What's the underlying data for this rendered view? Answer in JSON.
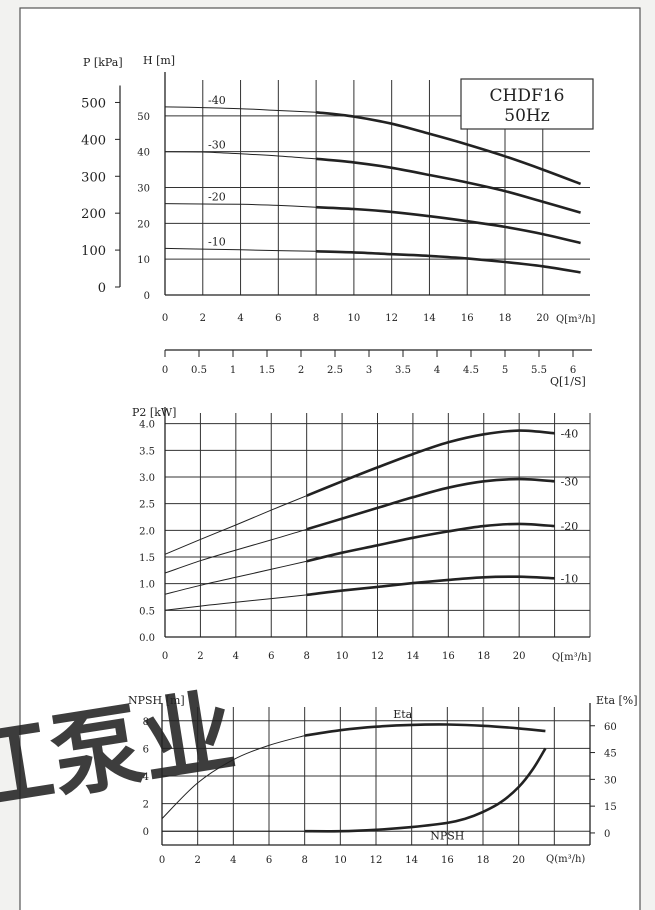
{
  "page": {
    "model": "CHDF16",
    "frequency": "50Hz",
    "watermark": "江泵业",
    "colors": {
      "background": "#f2f2f0",
      "paper": "#ffffff",
      "ink": "#222222",
      "grid": "#333333",
      "watermark": "#4aa0dc"
    }
  },
  "chart_data": [
    {
      "type": "line",
      "x_label": "Q[m³/h]",
      "y_label_left": "H [m]",
      "y_label_pressure": "P [kPa]",
      "x_ticks": [
        0,
        2,
        4,
        6,
        8,
        10,
        12,
        14,
        16,
        18,
        20
      ],
      "x_range": [
        0,
        22.5
      ],
      "y_ticks": [
        0,
        10,
        20,
        30,
        40,
        50
      ],
      "y_range": [
        0,
        60
      ],
      "pressure_ticks": [
        0,
        100,
        200,
        300,
        400,
        500
      ],
      "grid": true,
      "secondary_axis": {
        "x_label": "Q[1/S]",
        "ticks": [
          "0",
          "0.5",
          "1",
          "1.5",
          "2",
          "2.5",
          "3",
          "3.5",
          "4",
          "4.5",
          "5",
          "5.5",
          "6"
        ],
        "tick_values": [
          0,
          0.5,
          1,
          1.5,
          2,
          2.5,
          3,
          3.5,
          4,
          4.5,
          5,
          5.5,
          6
        ]
      },
      "series": [
        {
          "name": "-40",
          "x": [
            0,
            2,
            4,
            6,
            8,
            10,
            12,
            14,
            16,
            18,
            20,
            22
          ],
          "y": [
            52.5,
            52.3,
            52,
            51.5,
            51,
            49.8,
            47.8,
            45,
            42,
            38.7,
            35,
            31
          ]
        },
        {
          "name": "-30",
          "x": [
            0,
            2,
            4,
            6,
            8,
            10,
            12,
            14,
            16,
            18,
            20,
            22
          ],
          "y": [
            40,
            39.9,
            39.4,
            38.8,
            38,
            37,
            35.5,
            33.5,
            31.4,
            29,
            26,
            23
          ]
        },
        {
          "name": "-20",
          "x": [
            0,
            2,
            4,
            6,
            8,
            10,
            12,
            14,
            16,
            18,
            20,
            22
          ],
          "y": [
            25.5,
            25.4,
            25.3,
            25,
            24.5,
            24,
            23.2,
            22,
            20.6,
            19,
            17,
            14.5
          ]
        },
        {
          "name": "-10",
          "x": [
            0,
            2,
            4,
            6,
            8,
            10,
            12,
            14,
            16,
            18,
            20,
            22
          ],
          "y": [
            13,
            12.8,
            12.6,
            12.4,
            12.2,
            11.9,
            11.4,
            10.9,
            10.2,
            9.2,
            8,
            6.3
          ]
        }
      ]
    },
    {
      "type": "line",
      "x_label": "Q[m³/h]",
      "y_label": "P2 [kW]",
      "x_ticks": [
        0,
        2,
        4,
        6,
        8,
        10,
        12,
        14,
        16,
        18,
        20
      ],
      "x_range": [
        0,
        24
      ],
      "y_ticks": [
        0.0,
        0.5,
        1.0,
        1.5,
        2.0,
        2.5,
        3.0,
        3.5,
        4.0
      ],
      "y_range": [
        0,
        4.2
      ],
      "grid": true,
      "series": [
        {
          "name": "-40",
          "x": [
            0,
            2,
            4,
            6,
            8,
            10,
            12,
            14,
            16,
            18,
            20,
            22
          ],
          "y": [
            1.55,
            1.83,
            2.1,
            2.38,
            2.65,
            2.92,
            3.18,
            3.43,
            3.65,
            3.8,
            3.87,
            3.82
          ]
        },
        {
          "name": "-30",
          "x": [
            0,
            2,
            4,
            6,
            8,
            10,
            12,
            14,
            16,
            18,
            20,
            22
          ],
          "y": [
            1.2,
            1.43,
            1.63,
            1.82,
            2.02,
            2.22,
            2.42,
            2.62,
            2.8,
            2.92,
            2.96,
            2.92
          ]
        },
        {
          "name": "-20",
          "x": [
            0,
            2,
            4,
            6,
            8,
            10,
            12,
            14,
            16,
            18,
            20,
            22
          ],
          "y": [
            0.8,
            0.97,
            1.12,
            1.27,
            1.42,
            1.58,
            1.72,
            1.86,
            1.98,
            2.08,
            2.12,
            2.08
          ]
        },
        {
          "name": "-10",
          "x": [
            0,
            2,
            4,
            6,
            8,
            10,
            12,
            14,
            16,
            18,
            20,
            22
          ],
          "y": [
            0.5,
            0.58,
            0.65,
            0.72,
            0.79,
            0.87,
            0.94,
            1.01,
            1.07,
            1.12,
            1.13,
            1.1
          ]
        }
      ]
    },
    {
      "type": "line",
      "x_label": "Q(m³/h)",
      "y_label_left": "NPSH [m]",
      "y_label_right": "Eta [%]",
      "x_ticks": [
        0,
        2,
        4,
        6,
        8,
        10,
        12,
        14,
        16,
        18,
        20
      ],
      "x_range": [
        0,
        23.5
      ],
      "y_ticks_left": [
        0,
        2,
        4,
        6,
        8
      ],
      "y_range_left": [
        -1,
        9
      ],
      "y_ticks_right": [
        0,
        15,
        30,
        45,
        60
      ],
      "y_range_right": [
        -6.75,
        70.5
      ],
      "grid": true,
      "series": [
        {
          "name": "Eta",
          "axis": "right",
          "x": [
            0,
            2,
            4,
            6,
            8,
            10,
            12,
            14,
            16,
            18,
            20,
            21.5
          ],
          "y": [
            8,
            28,
            41,
            49,
            54.5,
            57.5,
            59.5,
            60.5,
            60.7,
            60,
            58.5,
            57
          ]
        },
        {
          "name": "NPSH",
          "axis": "left",
          "x": [
            8,
            10,
            12,
            14,
            16,
            17,
            18,
            19,
            20,
            20.8,
            21.5
          ],
          "y": [
            0,
            0,
            0.1,
            0.3,
            0.6,
            0.9,
            1.4,
            2.1,
            3.2,
            4.5,
            6
          ]
        },
        {
          "name": "",
          "axis": "left",
          "x": [
            0,
            8
          ],
          "y": [
            0,
            0
          ]
        }
      ],
      "annotations": [
        "Eta",
        "NPSH"
      ]
    }
  ]
}
